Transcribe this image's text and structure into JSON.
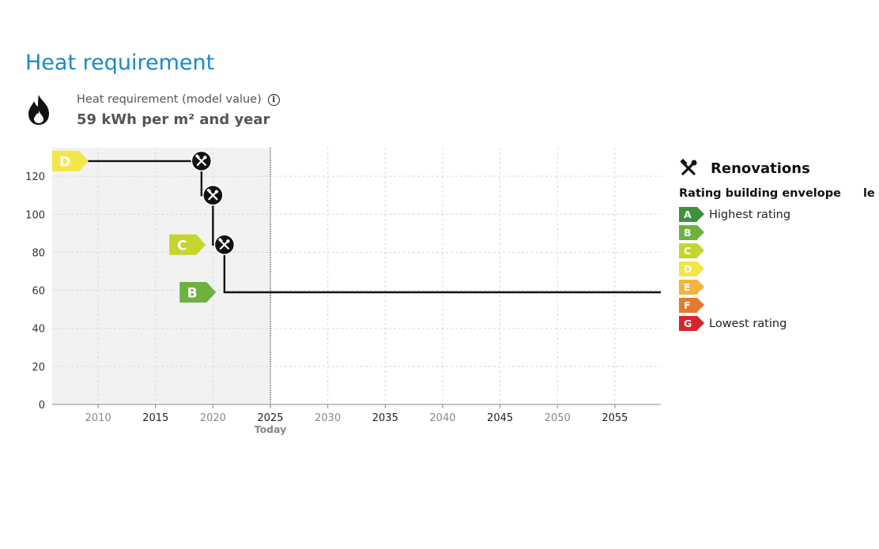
{
  "page": {
    "title": "Heat requirement"
  },
  "summary": {
    "label": "Heat requirement (model value)",
    "value": "59 kWh per m² and year",
    "icon": "flame-icon",
    "info_icon": "info-icon"
  },
  "legend": {
    "title": "Renovations",
    "icon": "tools-icon",
    "subtitle": "Rating building envelope",
    "subtitle_cut": "le",
    "ratings": [
      {
        "letter": "A",
        "color": "#3f8f3f",
        "description": "Highest rating"
      },
      {
        "letter": "B",
        "color": "#6db13f",
        "description": ""
      },
      {
        "letter": "C",
        "color": "#c4d52c",
        "description": ""
      },
      {
        "letter": "D",
        "color": "#f2e64a",
        "description": ""
      },
      {
        "letter": "E",
        "color": "#f2b43c",
        "description": ""
      },
      {
        "letter": "F",
        "color": "#e57a2c",
        "description": ""
      },
      {
        "letter": "G",
        "color": "#d4262b",
        "description": "Lowest rating"
      }
    ]
  },
  "chart_data": {
    "type": "line",
    "step": true,
    "title": "",
    "xlabel": "",
    "ylabel": "",
    "xlim": [
      2006,
      2059
    ],
    "ylim": [
      0,
      135
    ],
    "x_ticks": [
      2010,
      2015,
      2020,
      2025,
      2030,
      2035,
      2040,
      2045,
      2050,
      2055
    ],
    "x_tick_labels": [
      "2010",
      "2015",
      "2020",
      "2025",
      "2030",
      "2035",
      "2040",
      "2045",
      "2050",
      "2055"
    ],
    "y_ticks": [
      0,
      20,
      40,
      60,
      80,
      100,
      120
    ],
    "today": {
      "x": 2025,
      "label": "Today"
    },
    "past_shading": {
      "from": 2006,
      "to": 2025
    },
    "grid": true,
    "series": [
      {
        "points": [
          {
            "x": 2006,
            "y": 128
          },
          {
            "x": 2019,
            "y": 128
          },
          {
            "x": 2019,
            "y": 110
          },
          {
            "x": 2020,
            "y": 110
          },
          {
            "x": 2020,
            "y": 84
          },
          {
            "x": 2021,
            "y": 84
          },
          {
            "x": 2021,
            "y": 59
          },
          {
            "x": 2059,
            "y": 59
          }
        ]
      }
    ],
    "renovations": [
      {
        "x": 2019,
        "y": 128
      },
      {
        "x": 2020,
        "y": 110
      },
      {
        "x": 2021,
        "y": 84
      }
    ],
    "rating_markers": [
      {
        "letter": "D",
        "x": 2006,
        "y": 128,
        "color": "#f2e64a"
      },
      {
        "letter": "C",
        "x": 2016.2,
        "y": 84,
        "color": "#c4d52c"
      },
      {
        "letter": "B",
        "x": 2017.1,
        "y": 59,
        "color": "#6db13f"
      }
    ]
  }
}
